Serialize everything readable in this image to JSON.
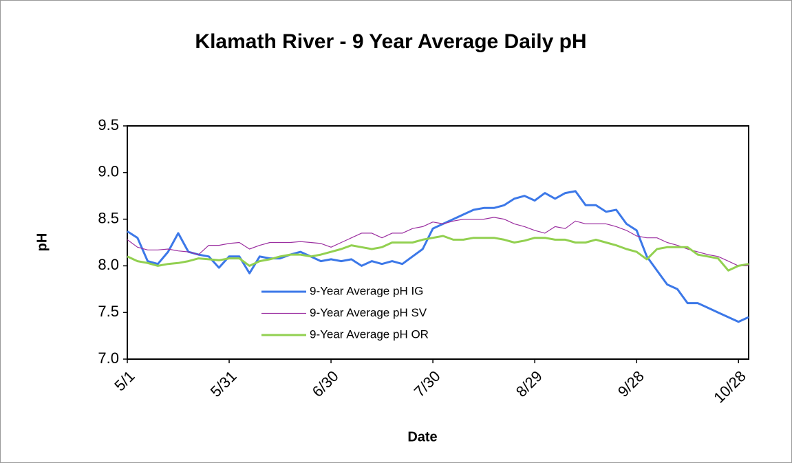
{
  "chart_data": {
    "type": "line",
    "title": "Klamath River - 9 Year Average Daily  pH",
    "x_label": "Date",
    "y_label": "pH",
    "categories": [
      "5/1",
      null,
      null,
      null,
      null,
      null,
      null,
      null,
      null,
      null,
      "5/31",
      null,
      null,
      null,
      null,
      null,
      null,
      null,
      null,
      null,
      "6/30",
      null,
      null,
      null,
      null,
      null,
      null,
      null,
      null,
      null,
      "7/30",
      null,
      null,
      null,
      null,
      null,
      null,
      null,
      null,
      null,
      "8/29",
      null,
      null,
      null,
      null,
      null,
      null,
      null,
      null,
      null,
      "9/28",
      null,
      null,
      null,
      null,
      null,
      null,
      null,
      null,
      null,
      "10/28",
      null
    ],
    "series": [
      {
        "name": "9-Year Average pH IG",
        "color": "#3c78e8",
        "values": [
          8.37,
          8.3,
          8.05,
          8.02,
          8.15,
          8.35,
          8.15,
          8.12,
          8.1,
          7.98,
          8.1,
          8.1,
          7.92,
          8.1,
          8.08,
          8.08,
          8.12,
          8.15,
          8.1,
          8.05,
          8.07,
          8.05,
          8.07,
          8.0,
          8.05,
          8.02,
          8.05,
          8.02,
          8.1,
          8.18,
          8.4,
          8.45,
          8.5,
          8.55,
          8.6,
          8.62,
          8.62,
          8.65,
          8.72,
          8.75,
          8.7,
          8.78,
          8.72,
          8.78,
          8.8,
          8.65,
          8.65,
          8.58,
          8.6,
          8.45,
          8.38,
          8.1,
          7.95,
          7.8,
          7.75,
          7.6,
          7.6,
          7.55,
          7.5,
          7.45,
          7.4,
          7.45
        ]
      },
      {
        "name": "9-Year Average pH SV",
        "color": "#9b2fa0",
        "values": [
          8.28,
          8.2,
          8.17,
          8.17,
          8.18,
          8.16,
          8.15,
          8.12,
          8.22,
          8.22,
          8.24,
          8.25,
          8.18,
          8.22,
          8.25,
          8.25,
          8.25,
          8.26,
          8.25,
          8.24,
          8.2,
          8.25,
          8.3,
          8.35,
          8.35,
          8.3,
          8.35,
          8.35,
          8.4,
          8.42,
          8.47,
          8.45,
          8.48,
          8.5,
          8.5,
          8.5,
          8.52,
          8.5,
          8.45,
          8.42,
          8.38,
          8.35,
          8.42,
          8.4,
          8.48,
          8.45,
          8.45,
          8.45,
          8.42,
          8.38,
          8.32,
          8.3,
          8.3,
          8.25,
          8.22,
          8.18,
          8.15,
          8.12,
          8.1,
          8.05,
          8.0,
          8.0
        ]
      },
      {
        "name": "9-Year Average pH OR",
        "color": "#92d050",
        "values": [
          8.1,
          8.05,
          8.03,
          8.0,
          8.02,
          8.03,
          8.05,
          8.08,
          8.07,
          8.06,
          8.08,
          8.08,
          8.0,
          8.05,
          8.07,
          8.1,
          8.12,
          8.12,
          8.1,
          8.12,
          8.15,
          8.18,
          8.22,
          8.2,
          8.18,
          8.2,
          8.25,
          8.25,
          8.25,
          8.28,
          8.3,
          8.32,
          8.28,
          8.28,
          8.3,
          8.3,
          8.3,
          8.28,
          8.25,
          8.27,
          8.3,
          8.3,
          8.28,
          8.28,
          8.25,
          8.25,
          8.28,
          8.25,
          8.22,
          8.18,
          8.15,
          8.07,
          8.18,
          8.2,
          8.2,
          8.2,
          8.12,
          8.1,
          8.08,
          7.95,
          8.0,
          8.02
        ]
      }
    ],
    "ylim": [
      7.0,
      9.5
    ],
    "yticks": [
      {
        "value": 7,
        "label": "7.0"
      },
      7.5,
      {
        "value": 8,
        "label": "8.0"
      },
      8.5,
      {
        "value": 9,
        "label": "9.0"
      },
      9.5
    ],
    "grid": false
  }
}
